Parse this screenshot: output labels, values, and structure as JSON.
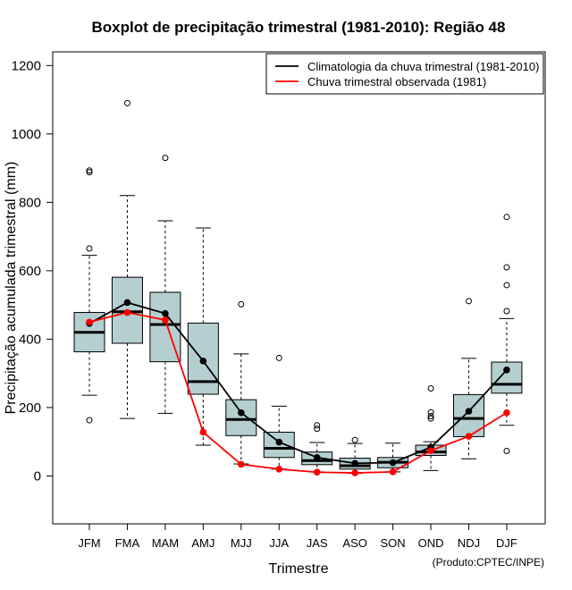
{
  "chart_data": {
    "type": "boxplot",
    "title": "Boxplot de precipitação trimestral (1981-2010): Região 48",
    "xlabel": "Trimestre",
    "ylabel": "Precipitação acumulada trimestral (mm)",
    "ylim": [
      -140,
      1240
    ],
    "yticks": [
      0,
      200,
      400,
      600,
      800,
      1000,
      1200
    ],
    "categories": [
      "JFM",
      "FMA",
      "MAM",
      "AMJ",
      "MJJ",
      "JJA",
      "JAS",
      "ASO",
      "SON",
      "OND",
      "NDJ",
      "DJF"
    ],
    "boxes": [
      {
        "whisker_low": 236,
        "q1": 363,
        "median": 420,
        "q3": 478,
        "whisker_high": 645,
        "outliers": [
          163,
          665,
          888,
          893
        ]
      },
      {
        "whisker_low": 168,
        "q1": 388,
        "median": 480,
        "q3": 581,
        "whisker_high": 820,
        "outliers": [
          1090
        ]
      },
      {
        "whisker_low": 183,
        "q1": 334,
        "median": 443,
        "q3": 537,
        "whisker_high": 746,
        "outliers": [
          930
        ]
      },
      {
        "whisker_low": 90,
        "q1": 239,
        "median": 276,
        "q3": 447,
        "whisker_high": 725,
        "outliers": []
      },
      {
        "whisker_low": 35,
        "q1": 118,
        "median": 165,
        "q3": 223,
        "whisker_high": 357,
        "outliers": [
          502
        ]
      },
      {
        "whisker_low": 20,
        "q1": 54,
        "median": 81,
        "q3": 128,
        "whisker_high": 204,
        "outliers": [
          345
        ]
      },
      {
        "whisker_low": 12,
        "q1": 33,
        "median": 45,
        "q3": 70,
        "whisker_high": 98,
        "outliers": [
          138,
          148
        ]
      },
      {
        "whisker_low": 8,
        "q1": 20,
        "median": 30,
        "q3": 52,
        "whisker_high": 95,
        "outliers": [
          105
        ]
      },
      {
        "whisker_low": 12,
        "q1": 24,
        "median": 40,
        "q3": 54,
        "whisker_high": 96,
        "outliers": []
      },
      {
        "whisker_low": 16,
        "q1": 60,
        "median": 70,
        "q3": 90,
        "whisker_high": 100,
        "outliers": [
          168,
          175,
          186,
          256
        ]
      },
      {
        "whisker_low": 50,
        "q1": 115,
        "median": 168,
        "q3": 238,
        "whisker_high": 344,
        "outliers": [
          511
        ]
      },
      {
        "whisker_low": 148,
        "q1": 242,
        "median": 268,
        "q3": 333,
        "whisker_high": 460,
        "outliers": [
          73,
          482,
          558,
          610,
          757
        ]
      }
    ],
    "series": [
      {
        "name": "Climatologia da chuva trimestral (1981-2010)",
        "color": "#000000",
        "values": [
          446,
          507,
          475,
          336,
          185,
          99,
          54,
          37,
          39,
          84,
          189,
          310
        ]
      },
      {
        "name": "Chuva trimestral observada (1981)",
        "color": "#ff0000",
        "values": [
          450,
          478,
          456,
          128,
          34,
          20,
          11,
          9,
          12,
          74,
          116,
          185
        ]
      }
    ],
    "legend_position": "top-right",
    "box_fill": "#b5cfd0",
    "credit": "(Produto:CPTEC/INPE)"
  }
}
